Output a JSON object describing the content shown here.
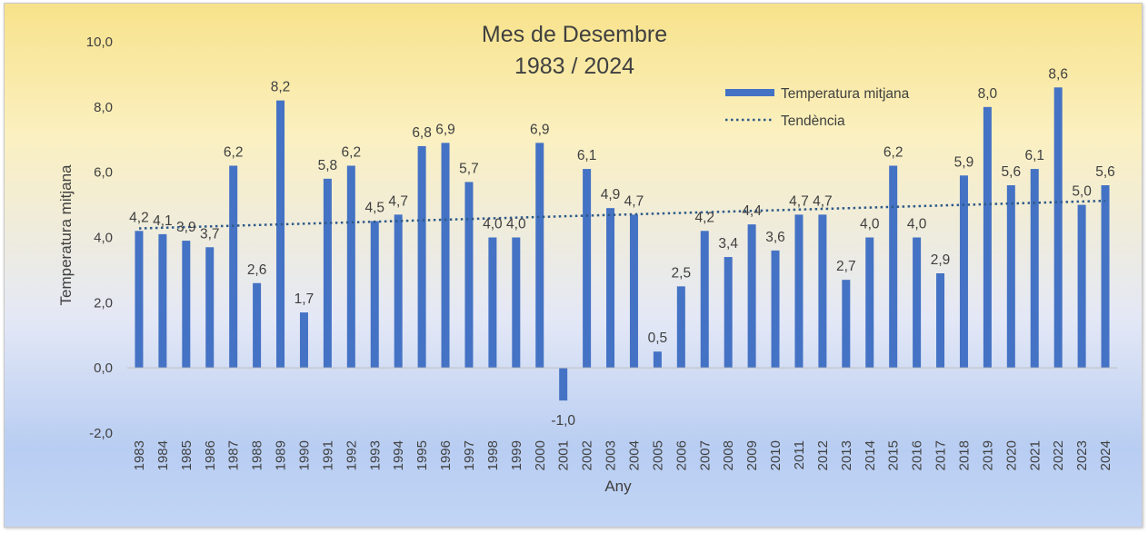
{
  "chart_data": {
    "type": "bar",
    "title": "Mes de Desembre",
    "subtitle": "1983 / 2024",
    "xlabel": "Any",
    "ylabel": "Temperatura mitjana",
    "ylim": [
      -2.0,
      10.0
    ],
    "y_ticks": [
      "10,0",
      "8,0",
      "6,0",
      "4,0",
      "2,0",
      "0,0",
      "-2,0"
    ],
    "y_tick_values": [
      10,
      8,
      6,
      4,
      2,
      0,
      -2
    ],
    "categories": [
      "1983",
      "1984",
      "1985",
      "1986",
      "1987",
      "1988",
      "1989",
      "1990",
      "1991",
      "1992",
      "1993",
      "1994",
      "1995",
      "1996",
      "1997",
      "1998",
      "1999",
      "2000",
      "2001",
      "2002",
      "2003",
      "2004",
      "2005",
      "2006",
      "2007",
      "2008",
      "2009",
      "2010",
      "2011",
      "2012",
      "2013",
      "2014",
      "2015",
      "2016",
      "2017",
      "2018",
      "2019",
      "2020",
      "2021",
      "2022",
      "2023",
      "2024"
    ],
    "series": [
      {
        "name": "Temperatura mitjana",
        "color": "#4472c4",
        "values": [
          4.2,
          4.1,
          3.9,
          3.7,
          6.2,
          2.6,
          8.2,
          1.7,
          5.8,
          6.2,
          4.5,
          4.7,
          6.8,
          6.9,
          5.7,
          4.0,
          4.0,
          6.9,
          -1.0,
          6.1,
          4.9,
          4.7,
          0.5,
          2.5,
          4.2,
          3.4,
          4.4,
          3.6,
          4.7,
          4.7,
          2.7,
          4.0,
          6.2,
          4.0,
          2.9,
          5.9,
          8.0,
          5.6,
          6.1,
          8.6,
          5.0,
          5.6
        ],
        "labels": [
          "4,2",
          "4,1",
          "3,9",
          "3,7",
          "6,2",
          "2,6",
          "8,2",
          "1,7",
          "5,8",
          "6,2",
          "4,5",
          "4,7",
          "6,8",
          "6,9",
          "5,7",
          "4,0",
          "4,0",
          "6,9",
          "-1,0",
          "6,1",
          "4,9",
          "4,7",
          "0,5",
          "2,5",
          "4,2",
          "3,4",
          "4,4",
          "3,6",
          "4,7",
          "4,7",
          "2,7",
          "4,0",
          "6,2",
          "4,0",
          "2,9",
          "5,9",
          "8,0",
          "5,6",
          "6,1",
          "8,6",
          "5,0",
          "5,6"
        ]
      }
    ],
    "trendline": {
      "name": "Tendència",
      "color": "#2e5a8a",
      "style": "dotted",
      "type": "linear"
    },
    "grid": false,
    "legend": "top-right"
  }
}
